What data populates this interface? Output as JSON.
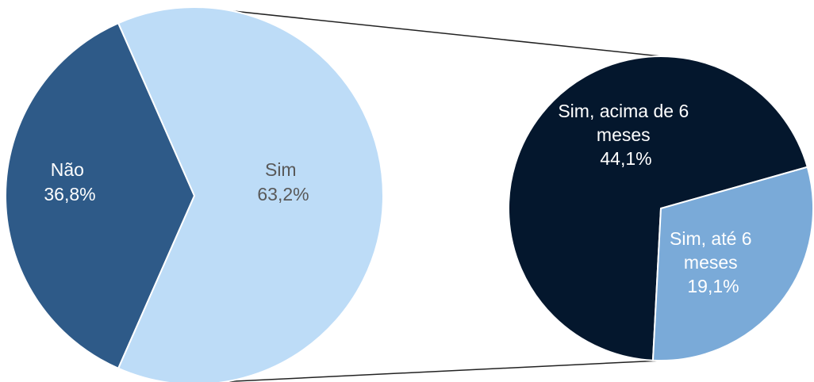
{
  "chart_data": {
    "type": "pie",
    "subtype": "pie-of-pie",
    "main_pie": {
      "slices": [
        {
          "label_line1": "Não",
          "label_line2": "",
          "value_text": "36,8%",
          "value": 36.8,
          "color": "#2e5a88",
          "text_color": "#ffffff"
        },
        {
          "label_line1": "Sim",
          "label_line2": "",
          "value_text": "63,2%",
          "value": 63.2,
          "color": "#bddcf7",
          "text_color": "#595959",
          "exploded_into_secondary": true
        }
      ]
    },
    "secondary_pie": {
      "slices": [
        {
          "label_line1": "Sim, acima de 6",
          "label_line2": "meses",
          "value_text": "44,1%",
          "value": 44.1,
          "color": "#04172d",
          "text_color": "#ffffff"
        },
        {
          "label_line1": "Sim, até 6",
          "label_line2": "meses",
          "value_text": "19,1%",
          "value": 19.1,
          "color": "#7aaad8",
          "text_color": "#ffffff"
        }
      ]
    },
    "connector_color": "#222222"
  }
}
